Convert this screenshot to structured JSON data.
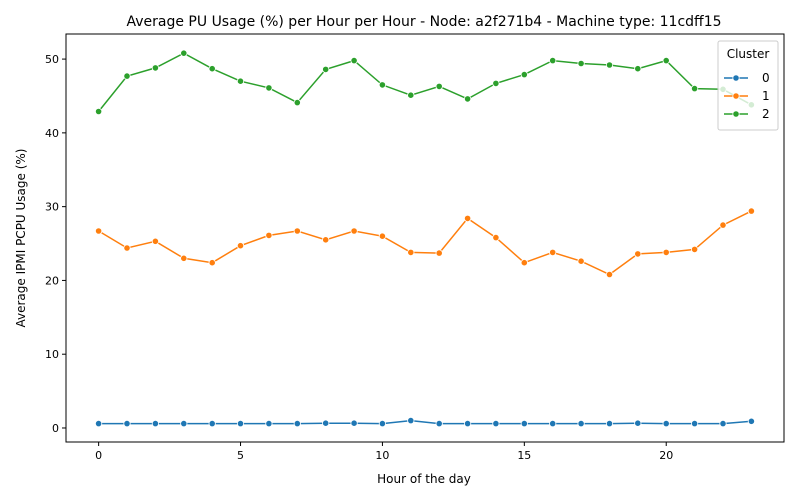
{
  "chart_data": {
    "type": "line",
    "title": "Average PU Usage (%) per Hour per Hour - Node: a2f271b4 - Machine type: 11cdff15",
    "xlabel": "Hour of the day",
    "ylabel": "Average IPMI PCPU Usage (%)",
    "xlim": [
      -1.15,
      24.15
    ],
    "ylim": [
      -1.9,
      53.4
    ],
    "xticks": [
      0,
      5,
      10,
      15,
      20
    ],
    "yticks": [
      0,
      10,
      20,
      30,
      40,
      50
    ],
    "grid": false,
    "legend": {
      "title": "Cluster",
      "position": "top-right"
    },
    "x": [
      0,
      1,
      2,
      3,
      4,
      5,
      6,
      7,
      8,
      9,
      10,
      11,
      12,
      13,
      14,
      15,
      16,
      17,
      18,
      19,
      20,
      21,
      22,
      23
    ],
    "series": [
      {
        "name": "0",
        "color": "#1f77b4",
        "values": [
          0.6,
          0.6,
          0.6,
          0.6,
          0.6,
          0.6,
          0.6,
          0.6,
          0.65,
          0.65,
          0.6,
          1.0,
          0.6,
          0.6,
          0.6,
          0.6,
          0.6,
          0.6,
          0.6,
          0.65,
          0.6,
          0.6,
          0.6,
          0.9
        ]
      },
      {
        "name": "1",
        "color": "#ff7f0e",
        "values": [
          26.7,
          24.4,
          25.3,
          23.0,
          22.4,
          24.7,
          26.1,
          26.7,
          25.5,
          26.7,
          26.0,
          23.8,
          23.7,
          28.4,
          25.8,
          22.4,
          23.8,
          22.6,
          20.8,
          23.6,
          23.8,
          24.2,
          27.5,
          29.4
        ]
      },
      {
        "name": "2",
        "color": "#2ca02c",
        "values": [
          42.9,
          47.7,
          48.8,
          50.8,
          48.7,
          47.0,
          46.1,
          44.1,
          48.6,
          49.8,
          46.5,
          45.1,
          46.3,
          44.6,
          46.7,
          47.9,
          49.8,
          49.4,
          49.2,
          48.7,
          49.8,
          46.0,
          45.9,
          43.8
        ]
      }
    ]
  }
}
